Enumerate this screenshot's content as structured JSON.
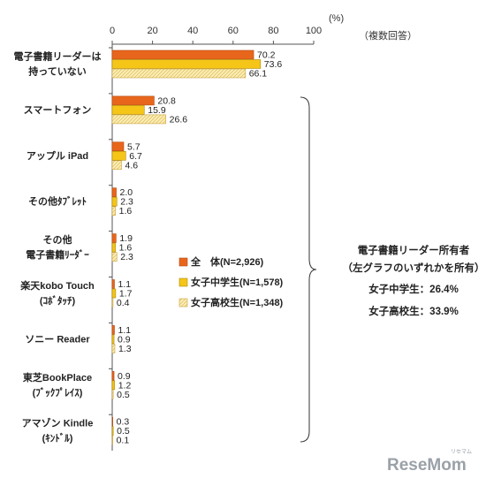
{
  "chart_data": {
    "type": "bar",
    "orientation": "horizontal",
    "unit_label": "(%)",
    "note_top": "（複数回答）",
    "xlim": [
      0,
      100
    ],
    "xticks": [
      0,
      20,
      40,
      60,
      80,
      100
    ],
    "categories": [
      [
        "電子書籍リーダーは",
        "持っていない"
      ],
      [
        "スマートフォン"
      ],
      [
        "アップル iPad"
      ],
      [
        "その他ﾀﾌﾞﾚｯﾄ"
      ],
      [
        "その他",
        "電子書籍ﾘｰﾀﾞｰ"
      ],
      [
        "楽天kobo Touch",
        "(ｺﾎﾞﾀｯﾁ)"
      ],
      [
        "ソニー Reader"
      ],
      [
        "東芝BookPlace",
        "(ﾌﾞｯｸﾌﾟﾚｲｽ)"
      ],
      [
        "アマゾン Kindle",
        "(ｷﾝﾄﾞﾙ)"
      ]
    ],
    "series": [
      {
        "name": "全　体(N=2,926)",
        "values": [
          70.2,
          20.8,
          5.7,
          2.0,
          1.9,
          1.1,
          1.1,
          0.9,
          0.3
        ],
        "color": "#e8661c"
      },
      {
        "name": "女子中学生(N=1,578)",
        "values": [
          73.6,
          15.9,
          6.7,
          2.3,
          1.6,
          1.7,
          0.9,
          1.2,
          0.5
        ],
        "color": "#f5c518"
      },
      {
        "name": "女子高校生(N=1,348)",
        "values": [
          66.1,
          26.6,
          4.6,
          1.6,
          2.3,
          0.4,
          1.3,
          0.5,
          0.1
        ],
        "color": "#fbedb4"
      }
    ],
    "value_labels": [
      [
        "70.2",
        "20.8",
        "5.7",
        "2.0",
        "1.9",
        "1.1",
        "1.1",
        "0.9",
        "0.3"
      ],
      [
        "73.6",
        "15.9",
        "6.7",
        "2.3",
        "1.6",
        "1.7",
        "0.9",
        "1.2",
        "0.5"
      ],
      [
        "66.1",
        "26.6",
        "4.6",
        "1.6",
        "2.3",
        "0.4",
        "1.3",
        "0.5",
        "0.1"
      ]
    ],
    "bracket_note": {
      "title": "電子書籍リーダー所有者",
      "subtitle": "（左グラフのいずれかを所有）",
      "lines": [
        "女子中学生：26.4%",
        "女子高校生：33.9%"
      ]
    }
  },
  "watermark": {
    "text": "ReseMom",
    "small": "リセマム"
  }
}
